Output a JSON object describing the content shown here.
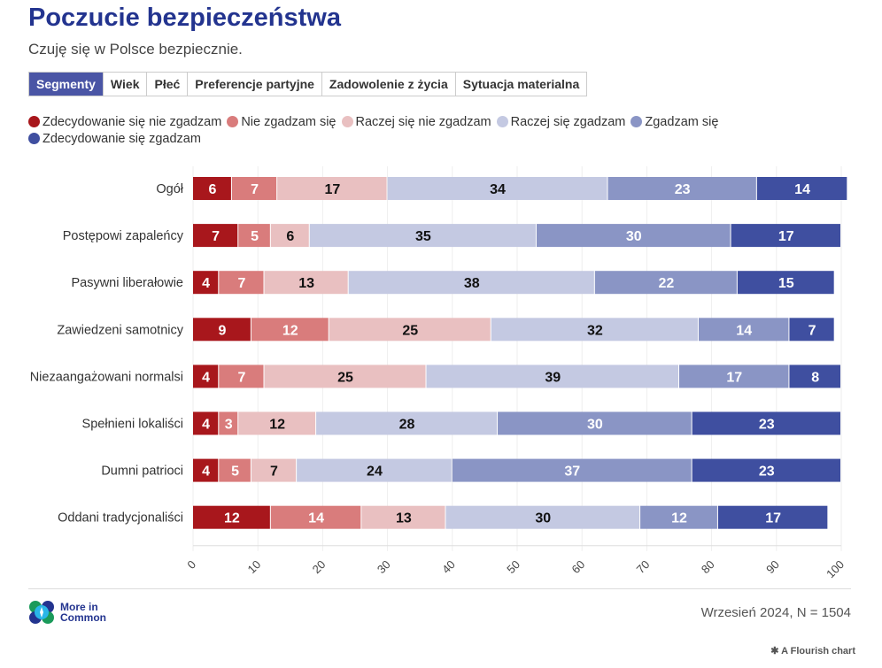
{
  "title": "Poczucie bezpieczeństwa",
  "subtitle": "Czuję się w Polsce bezpiecznie.",
  "tabs": [
    {
      "label": "Segmenty",
      "active": true
    },
    {
      "label": "Wiek",
      "active": false
    },
    {
      "label": "Płeć",
      "active": false
    },
    {
      "label": "Preferencje partyjne",
      "active": false
    },
    {
      "label": "Zadowolenie z życia",
      "active": false
    },
    {
      "label": "Sytuacja materialna",
      "active": false
    }
  ],
  "chart_data": {
    "type": "bar",
    "orientation": "horizontal-stacked",
    "categories": [
      "Ogół",
      "Postępowi zapaleńcy",
      "Pasywni liberałowie",
      "Zawiedzeni samotnicy",
      "Niezaangażowani normalsi",
      "Spełnieni lokaliści",
      "Dumni patrioci",
      "Oddani tradycjonaliści"
    ],
    "series": [
      {
        "name": "Zdecydowanie się nie zgadzam",
        "color": "#a8171c",
        "text_color": "#ffffff",
        "values": [
          6,
          7,
          4,
          9,
          4,
          4,
          4,
          12
        ]
      },
      {
        "name": "Nie zgadzam się",
        "color": "#d97c7c",
        "text_color": "#ffffff",
        "values": [
          7,
          5,
          7,
          12,
          7,
          3,
          5,
          14
        ]
      },
      {
        "name": "Raczej się nie zgadzam",
        "color": "#e9c0c1",
        "text_color": "#111111",
        "values": [
          17,
          6,
          13,
          25,
          25,
          12,
          7,
          13
        ]
      },
      {
        "name": "Raczej się zgadzam",
        "color": "#c4c9e2",
        "text_color": "#111111",
        "values": [
          34,
          35,
          38,
          32,
          39,
          28,
          24,
          30
        ]
      },
      {
        "name": "Zgadzam się",
        "color": "#8a95c5",
        "text_color": "#ffffff",
        "values": [
          23,
          30,
          22,
          14,
          17,
          30,
          37,
          12
        ]
      },
      {
        "name": "Zdecydowanie się zgadzam",
        "color": "#3f4fa0",
        "text_color": "#ffffff",
        "values": [
          14,
          17,
          15,
          7,
          8,
          23,
          23,
          17
        ]
      }
    ],
    "xlim": [
      0,
      100
    ],
    "xticks": [
      "0",
      "10",
      "20",
      "30",
      "40",
      "50",
      "60",
      "70",
      "80",
      "90",
      "100"
    ],
    "legend_position": "top-left",
    "grid": true
  },
  "footer": {
    "logo": "More in Common",
    "logo_line1": "More in",
    "logo_line2": "Common",
    "note": "Wrzesień 2024, N = 1504",
    "credit": "A Flourish chart"
  }
}
